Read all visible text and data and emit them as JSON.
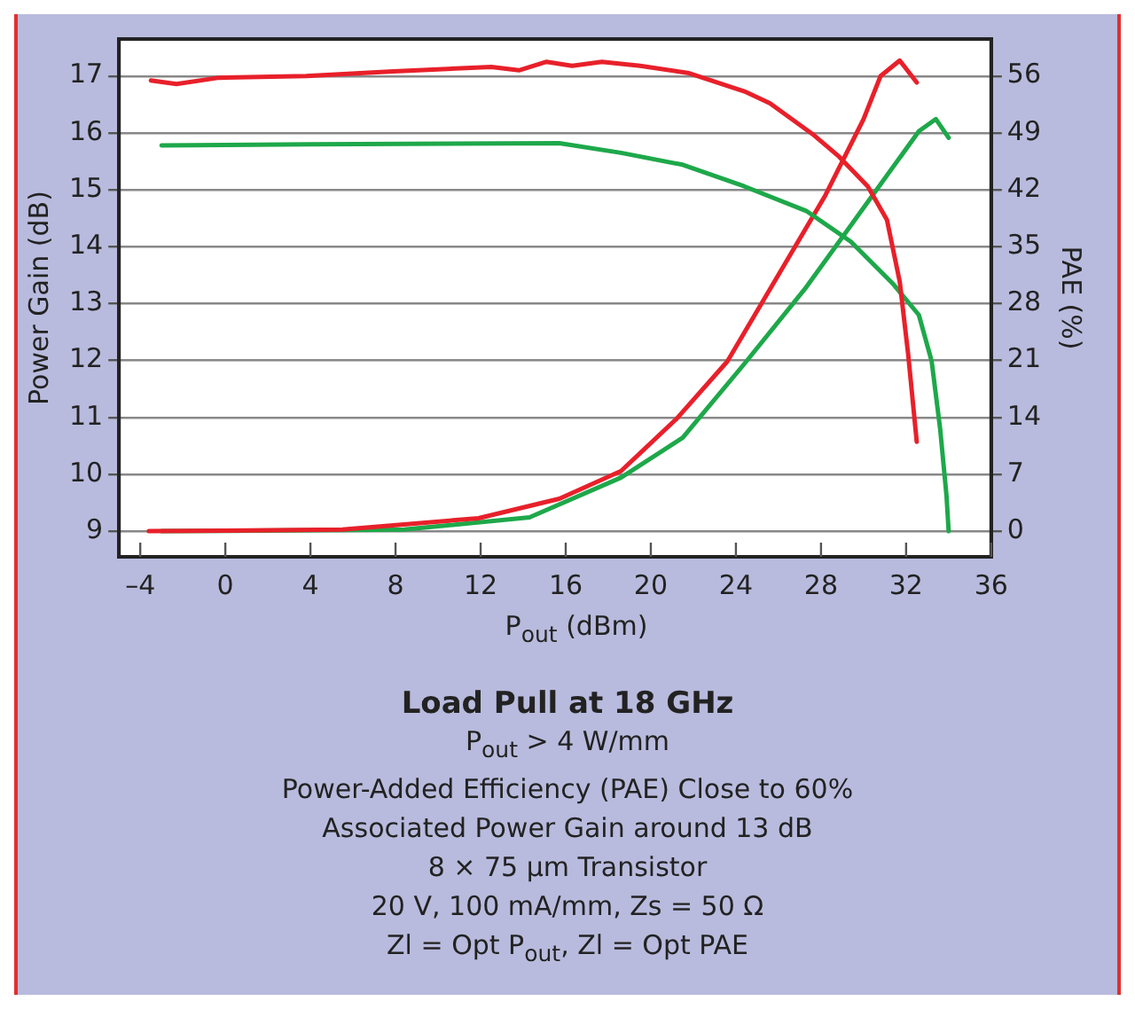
{
  "chart_data": {
    "type": "line",
    "title": "Load Pull at 18 GHz",
    "xlabel": "P$_{out}$ (dBm)",
    "ylabel": "Power Gain (dB)",
    "y2label": "PAE (%)",
    "annotations": [
      "P$_{out}$ > 4 W/mm",
      "Power-Added Efficiency (PAE) Close to 60%",
      "Associated Power Gain around 13 dB",
      "8 × 75 µm Transistor",
      "20 V, 100 mA/mm, Zs = 50 Ω",
      "Zl = Opt P$_{out}$, Zl = Opt PAE"
    ],
    "xlim": [
      -5,
      36
    ],
    "xticks": [
      {
        "value": -4,
        "label": "–4"
      },
      0,
      4,
      8,
      12,
      16,
      20,
      24,
      28,
      32,
      36
    ],
    "ylim": [
      8.55,
      17.65
    ],
    "yticks": [
      9,
      10,
      11,
      12,
      13,
      14,
      15,
      16,
      17
    ],
    "y2lim": [
      -3.15,
      60.55
    ],
    "y2ticks": [
      0,
      7,
      14,
      21,
      28,
      35,
      42,
      49,
      56
    ],
    "grid": "y",
    "legend": false,
    "marker": "none",
    "line_style": "solid",
    "series": [
      {
        "color": "#e8202a",
        "x": [
          -3.5,
          -2.3,
          -0.3,
          3.8,
          7.9,
          12.5,
          13.8,
          15.1,
          16.3,
          17.7,
          19.5,
          21.8,
          24.4,
          25.6,
          27.6,
          28.8,
          30.2,
          31.1,
          31.7,
          32.1,
          32.5
        ],
        "values": [
          16.92,
          16.86,
          16.97,
          17.0,
          17.08,
          17.16,
          17.1,
          17.25,
          17.18,
          17.25,
          17.18,
          17.05,
          16.73,
          16.52,
          15.98,
          15.6,
          15.06,
          14.47,
          13.39,
          12.1,
          10.57
        ]
      },
      {
        "color": "#1ea84a",
        "x": [
          -3.0,
          4.0,
          15.7,
          18.6,
          21.5,
          24.4,
          27.3,
          29.4,
          31.4,
          32.6,
          33.2,
          33.6,
          33.9,
          34.0
        ],
        "values": [
          15.78,
          15.8,
          15.82,
          15.65,
          15.44,
          15.06,
          14.63,
          14.09,
          13.34,
          12.8,
          11.99,
          10.8,
          9.62,
          9.0
        ]
      },
      {
        "color": "#e8202a",
        "axis": "y2",
        "x": [
          -3.6,
          5.5,
          11.9,
          15.7,
          18.6,
          21.2,
          23.6,
          25.9,
          28.2,
          30.0,
          30.8,
          31.7,
          32.5
        ],
        "values": [
          0,
          0.2,
          1.6,
          4.0,
          7.4,
          13.8,
          20.9,
          31.1,
          41.3,
          50.7,
          56.0,
          57.9,
          55.2
        ]
      },
      {
        "color": "#1ea84a",
        "axis": "y2",
        "x": [
          -3.0,
          8.4,
          14.3,
          18.6,
          21.5,
          24.4,
          27.3,
          30.2,
          32.6,
          33.4,
          34.0
        ],
        "values": [
          0,
          0.2,
          1.7,
          6.6,
          11.5,
          20.6,
          30.0,
          40.5,
          49.2,
          50.7,
          48.4
        ]
      }
    ]
  }
}
